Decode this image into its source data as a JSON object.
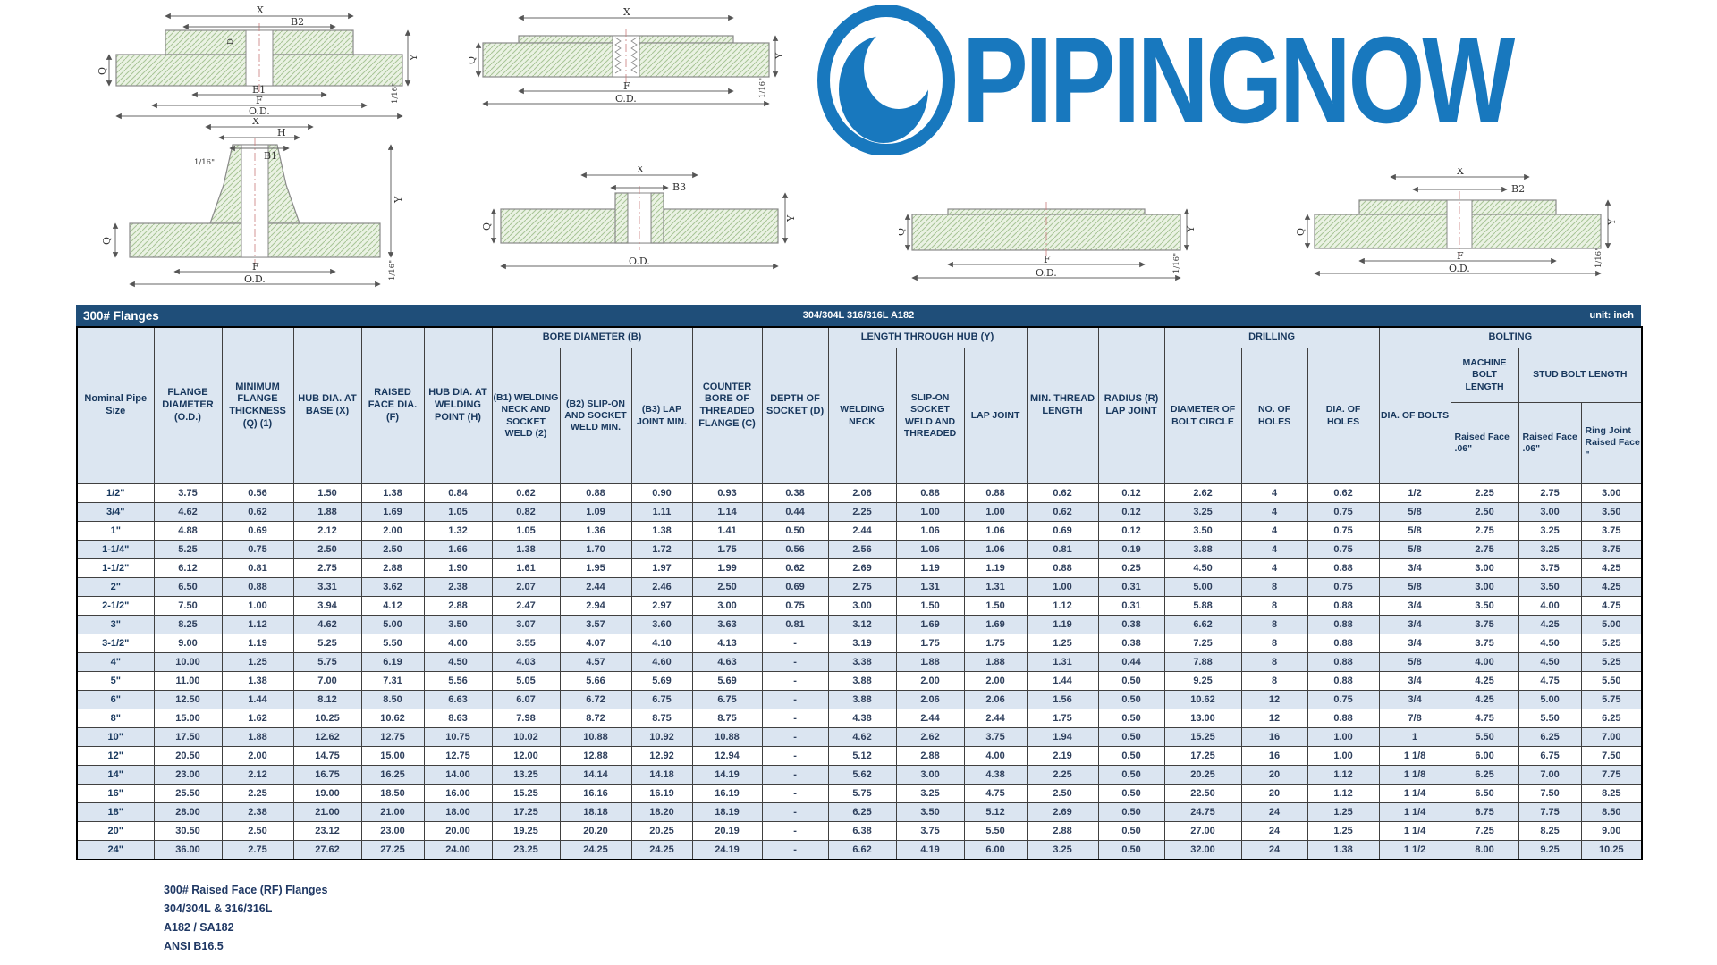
{
  "logo": {
    "text": "PIPINGNOW",
    "color": "#1878BE"
  },
  "table": {
    "title": "300# Flanges",
    "subtitle": "304/304L 316/316L A182",
    "unit": "unit: inch",
    "header": {
      "nominal": "Nominal Pipe Size",
      "flange_diameter": "FLANGE DIAMETER (O.D.)",
      "min_thickness": "MINIMUM FLANGE THICKNESS (Q) (1)",
      "hub_dia_base": "HUB DIA. AT BASE (X)",
      "raised_face": "RAISED FACE DIA. (F)",
      "hub_dia_weld": "HUB DIA. AT WELDING POINT (H)",
      "bore_group": "BORE DIAMETER (B)",
      "b1": "(B1) WELDING NECK AND SOCKET WELD (2)",
      "b2": "(B2) SLIP-ON AND SOCKET WELD MIN.",
      "b3": "(B3) LAP JOINT MIN.",
      "counter_bore": "COUNTER BORE OF THREADED FLANGE (C)",
      "depth_socket": "DEPTH OF SOCKET (D)",
      "length_group": "LENGTH THROUGH HUB (Y)",
      "welding_neck": "WELDING NECK",
      "slip_on": "SLIP-ON SOCKET WELD AND THREADED",
      "lap_joint": "LAP JOINT",
      "min_thread": "MIN. THREAD LENGTH",
      "radius": "RADIUS (R) LAP JOINT",
      "drilling_group": "DRILLING",
      "bolt_circle": "DIAMETER OF BOLT CIRCLE",
      "no_holes": "NO. OF HOLES",
      "dia_holes": "DIA. OF HOLES",
      "bolting_group": "BOLTING",
      "dia_bolts": "DIA. OF BOLTS",
      "machine_bolt": "MACHINE BOLT LENGTH",
      "stud_bolt": "STUD BOLT LENGTH",
      "machine_rf": "Raised Face .06\"",
      "stud_rf": "Raised Face .06\"",
      "ring_joint": "Ring Joint Raised Face \""
    },
    "rows": [
      [
        "1/2\"",
        "3.75",
        "0.56",
        "1.50",
        "1.38",
        "0.84",
        "0.62",
        "0.88",
        "0.90",
        "0.93",
        "0.38",
        "2.06",
        "0.88",
        "0.88",
        "0.62",
        "0.12",
        "2.62",
        "4",
        "0.62",
        "1/2",
        "2.25",
        "2.75",
        "3.00"
      ],
      [
        "3/4\"",
        "4.62",
        "0.62",
        "1.88",
        "1.69",
        "1.05",
        "0.82",
        "1.09",
        "1.11",
        "1.14",
        "0.44",
        "2.25",
        "1.00",
        "1.00",
        "0.62",
        "0.12",
        "3.25",
        "4",
        "0.75",
        "5/8",
        "2.50",
        "3.00",
        "3.50"
      ],
      [
        "1\"",
        "4.88",
        "0.69",
        "2.12",
        "2.00",
        "1.32",
        "1.05",
        "1.36",
        "1.38",
        "1.41",
        "0.50",
        "2.44",
        "1.06",
        "1.06",
        "0.69",
        "0.12",
        "3.50",
        "4",
        "0.75",
        "5/8",
        "2.75",
        "3.25",
        "3.75"
      ],
      [
        "1-1/4\"",
        "5.25",
        "0.75",
        "2.50",
        "2.50",
        "1.66",
        "1.38",
        "1.70",
        "1.72",
        "1.75",
        "0.56",
        "2.56",
        "1.06",
        "1.06",
        "0.81",
        "0.19",
        "3.88",
        "4",
        "0.75",
        "5/8",
        "2.75",
        "3.25",
        "3.75"
      ],
      [
        "1-1/2\"",
        "6.12",
        "0.81",
        "2.75",
        "2.88",
        "1.90",
        "1.61",
        "1.95",
        "1.97",
        "1.99",
        "0.62",
        "2.69",
        "1.19",
        "1.19",
        "0.88",
        "0.25",
        "4.50",
        "4",
        "0.88",
        "3/4",
        "3.00",
        "3.75",
        "4.25"
      ],
      [
        "2\"",
        "6.50",
        "0.88",
        "3.31",
        "3.62",
        "2.38",
        "2.07",
        "2.44",
        "2.46",
        "2.50",
        "0.69",
        "2.75",
        "1.31",
        "1.31",
        "1.00",
        "0.31",
        "5.00",
        "8",
        "0.75",
        "5/8",
        "3.00",
        "3.50",
        "4.25"
      ],
      [
        "2-1/2\"",
        "7.50",
        "1.00",
        "3.94",
        "4.12",
        "2.88",
        "2.47",
        "2.94",
        "2.97",
        "3.00",
        "0.75",
        "3.00",
        "1.50",
        "1.50",
        "1.12",
        "0.31",
        "5.88",
        "8",
        "0.88",
        "3/4",
        "3.50",
        "4.00",
        "4.75"
      ],
      [
        "3\"",
        "8.25",
        "1.12",
        "4.62",
        "5.00",
        "3.50",
        "3.07",
        "3.57",
        "3.60",
        "3.63",
        "0.81",
        "3.12",
        "1.69",
        "1.69",
        "1.19",
        "0.38",
        "6.62",
        "8",
        "0.88",
        "3/4",
        "3.75",
        "4.25",
        "5.00"
      ],
      [
        "3-1/2\"",
        "9.00",
        "1.19",
        "5.25",
        "5.50",
        "4.00",
        "3.55",
        "4.07",
        "4.10",
        "4.13",
        "-",
        "3.19",
        "1.75",
        "1.75",
        "1.25",
        "0.38",
        "7.25",
        "8",
        "0.88",
        "3/4",
        "3.75",
        "4.50",
        "5.25"
      ],
      [
        "4\"",
        "10.00",
        "1.25",
        "5.75",
        "6.19",
        "4.50",
        "4.03",
        "4.57",
        "4.60",
        "4.63",
        "-",
        "3.38",
        "1.88",
        "1.88",
        "1.31",
        "0.44",
        "7.88",
        "8",
        "0.88",
        "5/8",
        "4.00",
        "4.50",
        "5.25"
      ],
      [
        "5\"",
        "11.00",
        "1.38",
        "7.00",
        "7.31",
        "5.56",
        "5.05",
        "5.66",
        "5.69",
        "5.69",
        "-",
        "3.88",
        "2.00",
        "2.00",
        "1.44",
        "0.50",
        "9.25",
        "8",
        "0.88",
        "3/4",
        "4.25",
        "4.75",
        "5.50"
      ],
      [
        "6\"",
        "12.50",
        "1.44",
        "8.12",
        "8.50",
        "6.63",
        "6.07",
        "6.72",
        "6.75",
        "6.75",
        "-",
        "3.88",
        "2.06",
        "2.06",
        "1.56",
        "0.50",
        "10.62",
        "12",
        "0.75",
        "3/4",
        "4.25",
        "5.00",
        "5.75"
      ],
      [
        "8\"",
        "15.00",
        "1.62",
        "10.25",
        "10.62",
        "8.63",
        "7.98",
        "8.72",
        "8.75",
        "8.75",
        "-",
        "4.38",
        "2.44",
        "2.44",
        "1.75",
        "0.50",
        "13.00",
        "12",
        "0.88",
        "7/8",
        "4.75",
        "5.50",
        "6.25"
      ],
      [
        "10\"",
        "17.50",
        "1.88",
        "12.62",
        "12.75",
        "10.75",
        "10.02",
        "10.88",
        "10.92",
        "10.88",
        "-",
        "4.62",
        "2.62",
        "3.75",
        "1.94",
        "0.50",
        "15.25",
        "16",
        "1.00",
        "1",
        "5.50",
        "6.25",
        "7.00"
      ],
      [
        "12\"",
        "20.50",
        "2.00",
        "14.75",
        "15.00",
        "12.75",
        "12.00",
        "12.88",
        "12.92",
        "12.94",
        "-",
        "5.12",
        "2.88",
        "4.00",
        "2.19",
        "0.50",
        "17.25",
        "16",
        "1.00",
        "1 1/8",
        "6.00",
        "6.75",
        "7.50"
      ],
      [
        "14\"",
        "23.00",
        "2.12",
        "16.75",
        "16.25",
        "14.00",
        "13.25",
        "14.14",
        "14.18",
        "14.19",
        "-",
        "5.62",
        "3.00",
        "4.38",
        "2.25",
        "0.50",
        "20.25",
        "20",
        "1.12",
        "1 1/8",
        "6.25",
        "7.00",
        "7.75"
      ],
      [
        "16\"",
        "25.50",
        "2.25",
        "19.00",
        "18.50",
        "16.00",
        "15.25",
        "16.16",
        "16.19",
        "16.19",
        "-",
        "5.75",
        "3.25",
        "4.75",
        "2.50",
        "0.50",
        "22.50",
        "20",
        "1.12",
        "1 1/4",
        "6.50",
        "7.50",
        "8.25"
      ],
      [
        "18\"",
        "28.00",
        "2.38",
        "21.00",
        "21.00",
        "18.00",
        "17.25",
        "18.18",
        "18.20",
        "18.19",
        "-",
        "6.25",
        "3.50",
        "5.12",
        "2.69",
        "0.50",
        "24.75",
        "24",
        "1.25",
        "1 1/4",
        "6.75",
        "7.75",
        "8.50"
      ],
      [
        "20\"",
        "30.50",
        "2.50",
        "23.12",
        "23.00",
        "20.00",
        "19.25",
        "20.20",
        "20.25",
        "20.19",
        "-",
        "6.38",
        "3.75",
        "5.50",
        "2.88",
        "0.50",
        "27.00",
        "24",
        "1.25",
        "1 1/4",
        "7.25",
        "8.25",
        "9.00"
      ],
      [
        "24\"",
        "36.00",
        "2.75",
        "27.62",
        "27.25",
        "24.00",
        "23.25",
        "24.25",
        "24.25",
        "24.19",
        "-",
        "6.62",
        "4.19",
        "6.00",
        "3.25",
        "0.50",
        "32.00",
        "24",
        "1.38",
        "1 1/2",
        "8.00",
        "9.25",
        "10.25"
      ]
    ]
  },
  "footer": {
    "lines": [
      "300# Raised Face (RF) Flanges",
      "304/304L & 316/316L",
      "A182 / SA182",
      "ANSI B16.5"
    ]
  },
  "drawings": {
    "socket_weld": {
      "x": "X",
      "b2": "B2",
      "d": "D",
      "b1": "B1",
      "f": "F",
      "od": "O.D.",
      "q": "Q",
      "y": "Y",
      "six": "1/16\""
    },
    "threaded": {
      "x": "X",
      "f": "F",
      "od": "O.D.",
      "q": "Q",
      "y": "Y",
      "six": "1/16\""
    },
    "weld_neck": {
      "x": "X",
      "h": "H",
      "b1": "B1",
      "six": "1/16\"",
      "q": "Q",
      "f": "F",
      "od": "O.D.",
      "y": "Y"
    },
    "lap_joint": {
      "x": "X",
      "b3": "B3",
      "q": "Q",
      "od": "O.D.",
      "y": "Y"
    },
    "blind": {
      "q": "Q",
      "f": "F",
      "od": "O.D.",
      "y": "Y",
      "six": "1/16\""
    },
    "slip_on": {
      "x": "X",
      "b2": "B2",
      "q": "Q",
      "f": "F",
      "od": "O.D.",
      "y": "Y",
      "six": "1/16\""
    }
  },
  "colors": {
    "title_bar": "#1F4E79",
    "header_bg": "#DCE6F1",
    "row_alt": "#DBE5F1",
    "logo_blue": "#1878BE"
  }
}
